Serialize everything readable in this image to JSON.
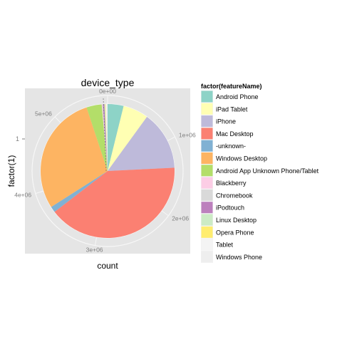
{
  "chart_data": {
    "type": "pie",
    "title": "device_type",
    "xlabel": "count",
    "ylabel": "factor(1)",
    "y_tick_labels": [
      "1"
    ],
    "radial_tick_labels": [
      "0e+00",
      "1e+06",
      "2e+06",
      "3e+06",
      "4e+06",
      "5e+06"
    ],
    "radial_ticks": [
      0,
      1000000,
      2000000,
      3000000,
      4000000,
      5000000
    ],
    "total": 5700000,
    "legend": {
      "title": "factor(featureName)",
      "position": "right"
    },
    "slices": [
      {
        "name": "Android Phone",
        "value": 220000,
        "color": "#8DD3C7"
      },
      {
        "name": "iPad Tablet",
        "value": 350000,
        "color": "#FFFFB3"
      },
      {
        "name": "iPhone",
        "value": 810000,
        "color": "#BEBADA"
      },
      {
        "name": "Mac Desktop",
        "value": 2300000,
        "color": "#FB8072"
      },
      {
        "name": "-unknown-",
        "value": 80000,
        "color": "#80B1D3"
      },
      {
        "name": "Windows Desktop",
        "value": 1650000,
        "color": "#FDB462"
      },
      {
        "name": "Android App Unknown Phone/Tablet",
        "value": 210000,
        "color": "#B3DE69"
      },
      {
        "name": "Blackberry",
        "value": 8000,
        "color": "#FCCDE5"
      },
      {
        "name": "Chromebook",
        "value": 8000,
        "color": "#D9D9D9"
      },
      {
        "name": "iPodtouch",
        "value": 20000,
        "color": "#BC80BD"
      },
      {
        "name": "Linux Desktop",
        "value": 10000,
        "color": "#CCEBC5"
      },
      {
        "name": "Opera Phone",
        "value": 8000,
        "color": "#FFED6F"
      },
      {
        "name": "Tablet",
        "value": 15000,
        "color": "#F4F4F4"
      },
      {
        "name": "Windows Phone",
        "value": 11000,
        "color": "#EEEEEE"
      }
    ]
  },
  "colors": {
    "panel_background": "#E5E5E5",
    "grid_line": "#F7F7F7",
    "tick_text": "#7F7F7F",
    "legend_key_background": "#F2F2F2"
  }
}
